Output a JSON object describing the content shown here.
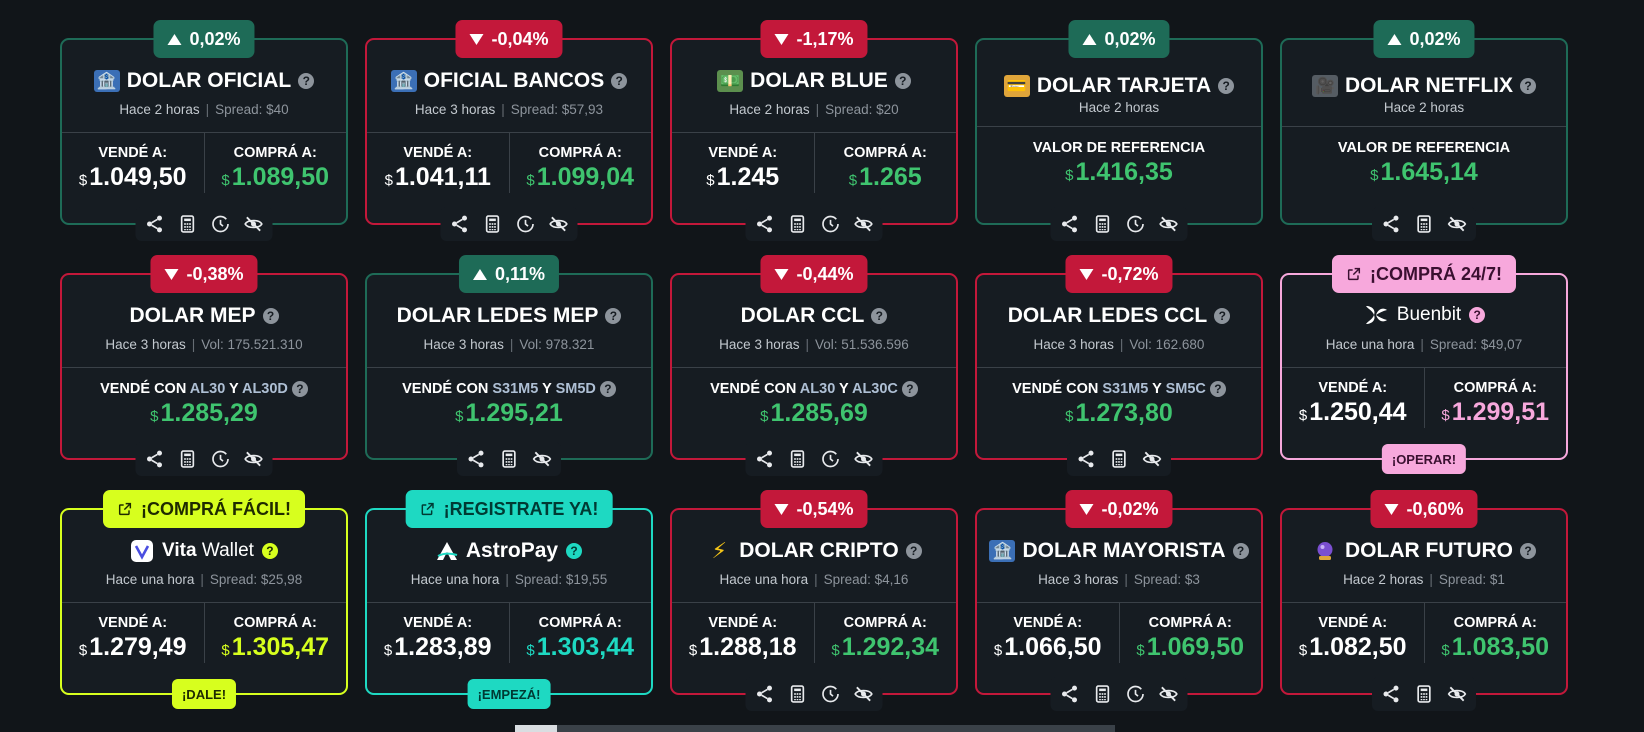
{
  "cards": [
    {
      "title": "DOLAR OFICIAL",
      "badge": "0,02%",
      "time": "Hace 2 horas",
      "meta": "Spread: $40",
      "sell_label": "VENDÉ A:",
      "buy_label": "COMPRÁ A:",
      "currency": "$",
      "sell": "1.049,50",
      "buy": "1.089,50"
    },
    {
      "title": "OFICIAL BANCOS",
      "badge": "-0,04%",
      "time": "Hace 3 horas",
      "meta": "Spread: $57,93",
      "sell_label": "VENDÉ A:",
      "buy_label": "COMPRÁ A:",
      "currency": "$",
      "sell": "1.041,11",
      "buy": "1.099,04"
    },
    {
      "title": "DOLAR BLUE",
      "badge": "-1,17%",
      "time": "Hace 2 horas",
      "meta": "Spread: $20",
      "sell_label": "VENDÉ A:",
      "buy_label": "COMPRÁ A:",
      "currency": "$",
      "sell": "1.245",
      "buy": "1.265"
    },
    {
      "title": "DOLAR TARJETA",
      "badge": "0,02%",
      "time": "Hace 2 horas",
      "ref_label": "VALOR DE REFERENCIA",
      "currency": "$",
      "value": "1.416,35"
    },
    {
      "title": "DOLAR NETFLIX",
      "badge": "0,02%",
      "time": "Hace 2 horas",
      "ref_label": "VALOR DE REFERENCIA",
      "currency": "$",
      "value": "1.645,14"
    },
    {
      "title": "DOLAR MEP",
      "badge": "-0,38%",
      "time": "Hace 3 horas",
      "meta": "Vol: 175.521.310",
      "vc": "VENDÉ CON",
      "t1": "AL30",
      "y": "Y",
      "t2": "AL30D",
      "currency": "$",
      "value": "1.285,29"
    },
    {
      "title": "DOLAR LEDES MEP",
      "badge": "0,11%",
      "time": "Hace 3 horas",
      "meta": "Vol: 978.321",
      "vc": "VENDÉ CON",
      "t1": "S31M5",
      "y": "Y",
      "t2": "SM5D",
      "currency": "$",
      "value": "1.295,21"
    },
    {
      "title": "DOLAR CCL",
      "badge": "-0,44%",
      "time": "Hace 3 horas",
      "meta": "Vol: 51.536.596",
      "vc": "VENDÉ CON",
      "t1": "AL30",
      "y": "Y",
      "t2": "AL30C",
      "currency": "$",
      "value": "1.285,69"
    },
    {
      "title": "DOLAR LEDES CCL",
      "badge": "-0,72%",
      "time": "Hace 3 horas",
      "meta": "Vol: 162.680",
      "vc": "VENDÉ CON",
      "t1": "S31M5",
      "y": "Y",
      "t2": "SM5C",
      "currency": "$",
      "value": "1.273,80"
    },
    {
      "title": "Buenbit",
      "badge": "¡COMPRÁ 24/7!",
      "time": "Hace una hora",
      "meta": "Spread: $49,07",
      "sell_label": "VENDÉ A:",
      "buy_label": "COMPRÁ A:",
      "currency": "$",
      "sell": "1.250,44",
      "buy": "1.299,51",
      "cta": "¡OPERAR!"
    },
    {
      "title": "Vita Wallet",
      "title_bold": "Vita",
      "title_rest": "Wallet",
      "badge": "¡COMPRÁ FÁCIL!",
      "time": "Hace una hora",
      "meta": "Spread: $25,98",
      "sell_label": "VENDÉ A:",
      "buy_label": "COMPRÁ A:",
      "currency": "$",
      "sell": "1.279,49",
      "buy": "1.305,47",
      "cta": "¡DALE!"
    },
    {
      "title": "AstroPay",
      "badge": "¡REGISTRATE YA!",
      "time": "Hace una hora",
      "meta": "Spread: $19,55",
      "sell_label": "VENDÉ A:",
      "buy_label": "COMPRÁ A:",
      "currency": "$",
      "sell": "1.283,89",
      "buy": "1.303,44",
      "cta": "¡EMPEZÁ!"
    },
    {
      "title": "DOLAR CRIPTO",
      "badge": "-0,54%",
      "time": "Hace una hora",
      "meta": "Spread: $4,16",
      "sell_label": "VENDÉ A:",
      "buy_label": "COMPRÁ A:",
      "currency": "$",
      "sell": "1.288,18",
      "buy": "1.292,34"
    },
    {
      "title": "DOLAR MAYORISTA",
      "badge": "-0,02%",
      "time": "Hace 3 horas",
      "meta": "Spread: $3",
      "sell_label": "VENDÉ A:",
      "buy_label": "COMPRÁ A:",
      "currency": "$",
      "sell": "1.066,50",
      "buy": "1.069,50"
    },
    {
      "title": "DOLAR FUTURO",
      "badge": "-0,60%",
      "time": "Hace 2 horas",
      "meta": "Spread: $1",
      "sell_label": "VENDÉ A:",
      "buy_label": "COMPRÁ A:",
      "currency": "$",
      "sell": "1.082,50",
      "buy": "1.083,50"
    }
  ],
  "colors": {
    "background": "#111519",
    "card": "#161c22",
    "up": "#1e6b57",
    "down": "#c3183a",
    "buy_green": "#3fc46f",
    "buenbit": "#f7a8dc",
    "vita": "#d7ff1e",
    "astropay": "#1ed9c2"
  },
  "qmark": "?",
  "sep": "|",
  "icons": [
    "share-icon",
    "calculator-icon",
    "history-icon",
    "hide-icon",
    "external-link-icon",
    "bank-icon",
    "banknote-icon",
    "credit-card-icon",
    "projector-icon",
    "lightning-icon",
    "crystal-ball-icon"
  ]
}
